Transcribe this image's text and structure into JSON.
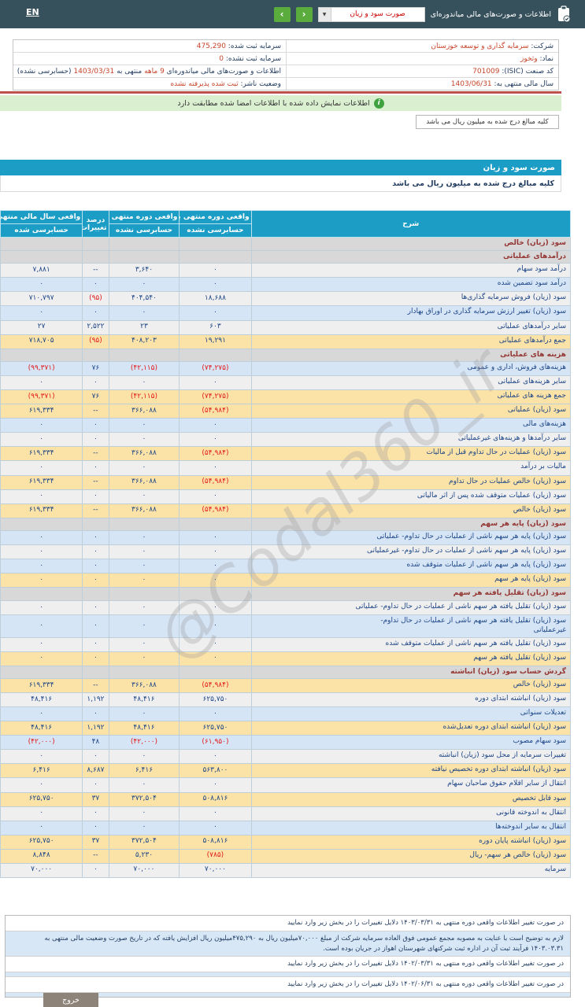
{
  "colors": {
    "topbar": "#37515c",
    "header_blue": "#1b9dc5",
    "accent_red": "#c7452b",
    "row_alt_blue": "#d5e5f6",
    "row_total_orange": "#fbe2a7",
    "section_text": "#943634",
    "negative_red": "#e21a1a",
    "nav_green": "#5aad3c",
    "banner_green": "#d9efcf",
    "exit_gray": "#8d8379"
  },
  "topbar": {
    "lang_link": "EN",
    "section_label": "اطلاعات و صورت‌های مالی میاندوره‌ای",
    "selector_value": "صورت سود و زیان",
    "dropdown_glyph": "▼",
    "prev_glyph": "‹",
    "next_glyph": "›"
  },
  "company_info": {
    "rows": [
      {
        "right": {
          "segments": [
            {
              "t": "شرکت: ",
              "accent": false
            },
            {
              "t": "سرمایه گذاری و توسعه خوزستان",
              "accent": true
            }
          ]
        },
        "left": {
          "segments": [
            {
              "t": "سرمایه ثبت شده: ",
              "accent": false
            },
            {
              "t": "475,290",
              "accent": true
            }
          ]
        }
      },
      {
        "right": {
          "segments": [
            {
              "t": "نماد: ",
              "accent": false
            },
            {
              "t": "وثخوز",
              "accent": true
            }
          ]
        },
        "left": {
          "segments": [
            {
              "t": "سرمایه ثبت نشده: ",
              "accent": false
            },
            {
              "t": "0",
              "accent": true
            }
          ]
        }
      },
      {
        "right": {
          "segments": [
            {
              "t": "کد صنعت (ISIC): ",
              "accent": false
            },
            {
              "t": "701009",
              "accent": true
            }
          ]
        },
        "left": {
          "segments": [
            {
              "t": "اطلاعات و صورت‌های مالی میاندوره‌ای ",
              "accent": false
            },
            {
              "t": "9 ماهه",
              "accent": true
            },
            {
              "t": " منتهی به ",
              "accent": false
            },
            {
              "t": "1403/03/31",
              "accent": true
            },
            {
              "t": " (حسابرسی نشده)",
              "accent": false
            }
          ]
        }
      },
      {
        "right": {
          "segments": [
            {
              "t": "سال مالی منتهی به: ",
              "accent": false
            },
            {
              "t": "1403/06/31",
              "accent": true
            }
          ]
        },
        "left": {
          "segments": [
            {
              "t": "وضعیت ناشر: ",
              "accent": false
            },
            {
              "t": "ثبت شده پذیرفته نشده",
              "accent": true
            }
          ]
        }
      }
    ]
  },
  "signature_banner": "اطلاعات نمایش داده شده با اطلاعات امضا شده مطابقت دارد",
  "info_icon_glyph": "i",
  "million_rial_note": "کلیه مبالغ درج شده به میلیون ریال می باشد",
  "statement": {
    "title": "صورت سود و زیان",
    "unit_note": "کلیه مبالغ درج شده به میلیون ریال می باشد",
    "columns": {
      "desc": "شرح",
      "col1_title": "واقعی دوره منتهی به ۱۴۰۳/۰۳/۳۱",
      "col1_sub": "حسابرسی نشده",
      "col2_title": "واقعی دوره منتهی به ۱۴۰۲/۰۳/۳۱",
      "col2_sub": "حسابرسی نشده",
      "pct_title": "درصد تغییرات",
      "col3_title": "واقعی سال مالی منتهی به ۱۴۰۲/۰۶/۳۱",
      "col3_sub": "حسابرسی شده"
    },
    "rows": [
      {
        "type": "section",
        "label": "سود (زیان) خالص"
      },
      {
        "type": "section",
        "label": "درآمدهای عملیاتی"
      },
      {
        "type": "data",
        "style": "plain",
        "label": "درآمد سود سهام",
        "values": [
          "۰",
          "۳,۶۴۰",
          "--",
          "۷,۸۸۱"
        ]
      },
      {
        "type": "data",
        "style": "alt",
        "label": "درآمد سود تضمین شده",
        "values": [
          "۰",
          "۰",
          "۰",
          "۰"
        ]
      },
      {
        "type": "data",
        "style": "plain",
        "label": "سود (زیان) فروش سرمایه گذاری‌ها",
        "values": [
          "۱۸,۶۸۸",
          "۴۰۴,۵۴۰",
          "(۹۵)",
          "۷۱۰,۷۹۷"
        ]
      },
      {
        "type": "data",
        "style": "alt",
        "label": "سود (زیان) تغییر ارزش سرمایه گذاری در اوراق بهادار",
        "values": [
          "۰",
          "۰",
          "۰",
          "۰"
        ]
      },
      {
        "type": "data",
        "style": "plain",
        "label": "سایر درآمدهای عملیاتی",
        "values": [
          "۶۰۳",
          "۲۳",
          "۲,۵۲۲",
          "۲۷"
        ]
      },
      {
        "type": "data",
        "style": "total",
        "label": "جمع درآمدهای عملیاتی",
        "values": [
          "۱۹,۲۹۱",
          "۴۰۸,۲۰۳",
          "(۹۵)",
          "۷۱۸,۷۰۵"
        ]
      },
      {
        "type": "section",
        "label": "هزینه های عملیاتی"
      },
      {
        "type": "data",
        "style": "alt",
        "label": "هزینه‌های فروش، اداری و عمومی",
        "values": [
          "(۷۴,۲۷۵)",
          "(۴۲,۱۱۵)",
          "۷۶",
          "(۹۹,۳۷۱)"
        ]
      },
      {
        "type": "data",
        "style": "plain",
        "label": "سایر هزینه‌های عملیاتی",
        "values": [
          "۰",
          "۰",
          "۰",
          "۰"
        ]
      },
      {
        "type": "data",
        "style": "total",
        "label": "جمع هزینه های عملیاتی",
        "values": [
          "(۷۴,۲۷۵)",
          "(۴۲,۱۱۵)",
          "۷۶",
          "(۹۹,۳۷۱)"
        ]
      },
      {
        "type": "data",
        "style": "total",
        "label": "سود (زیان) عملیاتی",
        "values": [
          "(۵۴,۹۸۴)",
          "۳۶۶,۰۸۸",
          "--",
          "۶۱۹,۳۳۴"
        ]
      },
      {
        "type": "data",
        "style": "alt",
        "label": "هزینه‌های مالی",
        "values": [
          "۰",
          "۰",
          "۰",
          "۰"
        ]
      },
      {
        "type": "data",
        "style": "plain",
        "label": "سایر درآمدها و هزینه‌های غیرعملیاتی",
        "values": [
          "۰",
          "۰",
          "۰",
          "۰"
        ]
      },
      {
        "type": "data",
        "style": "total",
        "label": "سود (زیان) عملیات در حال تداوم قبل از مالیات",
        "values": [
          "(۵۴,۹۸۴)",
          "۳۶۶,۰۸۸",
          "--",
          "۶۱۹,۳۳۴"
        ]
      },
      {
        "type": "data",
        "style": "plain",
        "label": "مالیات بر درآمد",
        "values": [
          "۰",
          "۰",
          "۰",
          "۰"
        ]
      },
      {
        "type": "data",
        "style": "total",
        "label": "سود (زیان) خالص عملیات در حال تداوم",
        "values": [
          "(۵۴,۹۸۴)",
          "۳۶۶,۰۸۸",
          "--",
          "۶۱۹,۳۳۴"
        ]
      },
      {
        "type": "data",
        "style": "plain",
        "label": "سود (زیان) عملیات متوقف شده پس از اثر مالیاتی",
        "values": [
          "۰",
          "۰",
          "۰",
          "۰"
        ]
      },
      {
        "type": "data",
        "style": "total",
        "label": "سود (زیان) خالص",
        "values": [
          "(۵۴,۹۸۴)",
          "۳۶۶,۰۸۸",
          "--",
          "۶۱۹,۳۳۴"
        ]
      },
      {
        "type": "section",
        "label": "سود (زیان) پایه هر سهم"
      },
      {
        "type": "data",
        "style": "alt",
        "label": "سود (زیان) پایه هر سهم ناشی از عملیات در حال تداوم- عملیاتی",
        "values": [
          "۰",
          "۰",
          "۰",
          "۰"
        ]
      },
      {
        "type": "data",
        "style": "plain",
        "label": "سود (زیان) پایه هر سهم ناشی از عملیات در حال تداوم- غیرعملیاتی",
        "values": [
          "۰",
          "۰",
          "۰",
          "۰"
        ]
      },
      {
        "type": "data",
        "style": "alt",
        "label": "سود (زیان) پایه هر سهم ناشی از عملیات متوقف شده",
        "values": [
          "۰",
          "۰",
          "۰",
          "۰"
        ]
      },
      {
        "type": "data",
        "style": "total",
        "label": "سود (زیان) پایه هر سهم",
        "values": [
          "۰",
          "۰",
          "۰",
          "۰"
        ]
      },
      {
        "type": "section",
        "label": "سود (زیان) تقلیل یافته هر سهم"
      },
      {
        "type": "data",
        "style": "plain",
        "label": "سود (زیان) تقلیل یافته هر سهم ناشی از عملیات در حال تداوم- عملیاتی",
        "values": [
          "۰",
          "۰",
          "۰",
          "۰"
        ]
      },
      {
        "type": "data",
        "style": "alt",
        "label": "سود (زیان) تقلیل یافته هر سهم ناشی از عملیات در حال تداوم- غیرعملیاتی",
        "values": [
          "۰",
          "۰",
          "۰",
          "۰"
        ]
      },
      {
        "type": "data",
        "style": "plain",
        "label": "سود (زیان) تقلیل یافته هر سهم ناشی از عملیات متوقف شده",
        "values": [
          "۰",
          "۰",
          "۰",
          "۰"
        ]
      },
      {
        "type": "data",
        "style": "total",
        "label": "سود (زیان) تقلیل یافته هر سهم",
        "values": [
          "۰",
          "۰",
          "۰",
          "۰"
        ]
      },
      {
        "type": "section",
        "label": "گردش حساب سود (زیان) انباشته"
      },
      {
        "type": "data",
        "style": "total",
        "label": "سود (زیان) خالص",
        "values": [
          "(۵۴,۹۸۴)",
          "۳۶۶,۰۸۸",
          "--",
          "۶۱۹,۳۳۴"
        ]
      },
      {
        "type": "data",
        "style": "plain",
        "label": "سود (زیان) انباشته ابتدای دوره",
        "values": [
          "۶۲۵,۷۵۰",
          "۴۸,۴۱۶",
          "۱,۱۹۲",
          "۴۸,۴۱۶"
        ]
      },
      {
        "type": "data",
        "style": "alt",
        "label": "تعدیلات سنواتی",
        "values": [
          "۰",
          "۰",
          "۰",
          "۰"
        ]
      },
      {
        "type": "data",
        "style": "total",
        "label": "سود (زیان) انباشته ابتدای دوره تعدیل‌شده",
        "values": [
          "۶۲۵,۷۵۰",
          "۴۸,۴۱۶",
          "۱,۱۹۲",
          "۴۸,۴۱۶"
        ]
      },
      {
        "type": "data",
        "style": "alt",
        "label": "سود سهام مصوب",
        "values": [
          "(۶۱,۹۵۰)",
          "(۴۲,۰۰۰)",
          "۴۸",
          "(۴۲,۰۰۰)"
        ]
      },
      {
        "type": "data",
        "style": "plain",
        "label": "تغییرات سرمایه از محل سود (زیان) انباشته",
        "values": [
          "۰",
          "۰",
          "۰",
          "۰"
        ]
      },
      {
        "type": "data",
        "style": "total",
        "label": "سود (زیان) انباشته ابتدای دوره تخصیص نیافته",
        "values": [
          "۵۶۳,۸۰۰",
          "۶,۴۱۶",
          "۸,۶۸۷",
          "۶,۴۱۶"
        ]
      },
      {
        "type": "data",
        "style": "plain",
        "label": "انتقال از سایر اقلام حقوق صاحبان سهام",
        "values": [
          "۰",
          "۰",
          "۰",
          "۰"
        ]
      },
      {
        "type": "data",
        "style": "total",
        "label": "سود قابل تخصیص",
        "values": [
          "۵۰۸,۸۱۶",
          "۳۷۲,۵۰۴",
          "۳۷",
          "۶۲۵,۷۵۰"
        ]
      },
      {
        "type": "data",
        "style": "plain",
        "label": "انتقال به اندوخته قانونی",
        "values": [
          "۰",
          "۰",
          "۰",
          "۰"
        ]
      },
      {
        "type": "data",
        "style": "alt",
        "label": "انتقال به سایر اندوخته‌ها",
        "values": [
          "۰",
          "۰",
          "۰",
          "۰"
        ]
      },
      {
        "type": "data",
        "style": "total",
        "label": "سود (زیان) انباشته پایان دوره",
        "values": [
          "۵۰۸,۸۱۶",
          "۳۷۲,۵۰۴",
          "۳۷",
          "۶۲۵,۷۵۰"
        ]
      },
      {
        "type": "data",
        "style": "total",
        "label": "سود (زیان) خالص هر سهم- ریال",
        "values": [
          "(۷۸۵)",
          "۵,۲۳۰",
          "--",
          "۸,۸۴۸"
        ]
      },
      {
        "type": "data",
        "style": "plain",
        "label": "سرمایه",
        "values": [
          "۷۰,۰۰۰",
          "۷۰,۰۰۰",
          "۰",
          "۷۰,۰۰۰"
        ]
      }
    ]
  },
  "watermark": "@Codal360_ir",
  "change_notes": [
    {
      "style": "label",
      "text": "در صورت تغییر اطلاعات واقعی دوره منتهی به ۱۴۰۳/۰۳/۳۱ دلایل تغییرات را در بخش زیر وارد نمایید"
    },
    {
      "style": "note",
      "text": "لازم به توضیح است با عنایت به مصوبه مجمع عمومی فوق العاده سرمایه شرکت از مبلغ ۷۰,۰۰۰میلیون ریال به ۴۷۵,۲۹۰میلیون ریال افزایش یافته که در تاریخ صورت وضعیت مالی منتهی به ۱۴۰۳.۰۳.۳۱ فرآیند ثبت آن در اداره ثبت شرکتهای شهرستان اهواز در جریان بوده است."
    },
    {
      "style": "label",
      "text": "در صورت تغییر اطلاعات واقعی دوره منتهی به ۱۴۰۲/۰۳/۳۱ دلایل تغییرات را در بخش زیر وارد نمایید"
    },
    {
      "style": "empty",
      "text": ""
    },
    {
      "style": "label",
      "text": "در صورت تغییر اطلاعات واقعی دوره منتهی به ۱۴۰۲/۰۶/۳۱ دلایل تغییرات را در بخش زیر وارد نمایید"
    },
    {
      "style": "empty",
      "text": ""
    }
  ],
  "exit_button": "خروج"
}
